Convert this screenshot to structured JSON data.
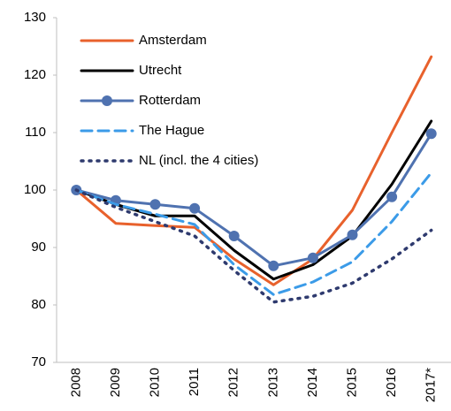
{
  "chart_data": {
    "type": "line",
    "categories": [
      "2008",
      "2009",
      "2010",
      "2011",
      "2012",
      "2013",
      "2014",
      "2015",
      "2016",
      "2017*"
    ],
    "series": [
      {
        "name": "Amsterdam",
        "color": "#e8612c",
        "style": "solid",
        "markers": false,
        "values": [
          100,
          94.2,
          93.8,
          93.5,
          88,
          83.5,
          88,
          96.5,
          110,
          123.2
        ]
      },
      {
        "name": "Utrecht",
        "color": "#000000",
        "style": "solid",
        "markers": false,
        "values": [
          100,
          97.5,
          95.5,
          95.5,
          89.5,
          84.5,
          87,
          92,
          101,
          112
        ]
      },
      {
        "name": "Rotterdam",
        "color": "#4f72b0",
        "style": "solid",
        "markers": true,
        "values": [
          100,
          98.2,
          97.5,
          96.8,
          92,
          86.8,
          88.2,
          92.2,
          98.8,
          109.8
        ]
      },
      {
        "name": "The Hague",
        "color": "#3b9be8",
        "style": "dashed",
        "markers": false,
        "values": [
          100,
          97.5,
          95.8,
          94,
          87,
          81.8,
          84,
          87.5,
          94.5,
          103
        ]
      },
      {
        "name": "NL (incl. the 4 cities)",
        "color": "#2e3a6e",
        "style": "dotted",
        "markers": false,
        "values": [
          100,
          97,
          94.5,
          92,
          86,
          80.5,
          81.5,
          83.8,
          88,
          93
        ]
      }
    ],
    "ylim": [
      70,
      130
    ],
    "yticks": [
      70,
      80,
      90,
      100,
      110,
      120,
      130
    ],
    "grid": false,
    "legend": "top-left"
  }
}
